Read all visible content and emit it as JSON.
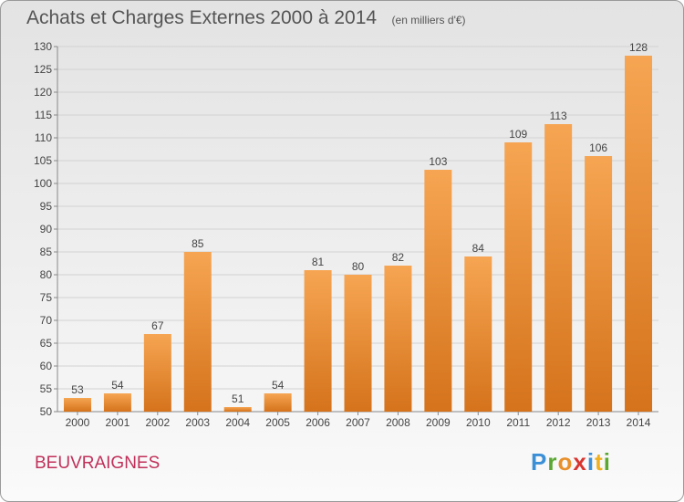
{
  "chart_data": {
    "type": "bar",
    "title": "Achats et Charges Externes 2000 à 2014",
    "subtitle": "(en milliers d'€)",
    "categories": [
      "2000",
      "2001",
      "2002",
      "2003",
      "2004",
      "2005",
      "2006",
      "2007",
      "2008",
      "2009",
      "2010",
      "2011",
      "2012",
      "2013",
      "2014"
    ],
    "values": [
      53,
      54,
      67,
      85,
      51,
      54,
      81,
      80,
      82,
      103,
      84,
      109,
      113,
      106,
      128
    ],
    "ylim": [
      50,
      130
    ],
    "yticks": [
      50,
      55,
      60,
      65,
      70,
      75,
      80,
      85,
      90,
      95,
      100,
      105,
      110,
      115,
      120,
      125,
      130
    ],
    "grid": true,
    "bar_color": "#e8913a"
  },
  "footer": {
    "location": "BEUVRAIGNES",
    "brand_letters": [
      "P",
      "r",
      "o",
      "x",
      "i",
      "t",
      "i"
    ],
    "brand_colors": [
      "#3b8fd6",
      "#5aa832",
      "#e8902c",
      "#d8352f",
      "#3b8fd6",
      "#f0b020",
      "#5aa832"
    ]
  }
}
